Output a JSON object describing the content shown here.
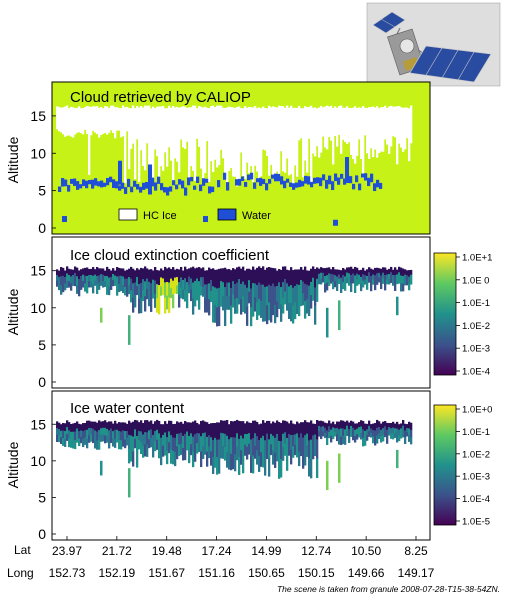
{
  "footer_text": "The scene is taken from granule 2008-07-28-T15-38-54ZN.",
  "colors": {
    "cloud_panel_background": "#c6f218",
    "hc_ice": "#ffffff",
    "water": "#1f4fd6",
    "colormap": [
      "#440154",
      "#3b528b",
      "#21918c",
      "#5ec962",
      "#fde725"
    ]
  },
  "satellite": {
    "icon": "satellite-icon"
  },
  "chart_data": [
    {
      "type": "heatmap",
      "title": "Cloud retrieved by CALIOP",
      "ylabel": "Altitude",
      "ylim": [
        0,
        19
      ],
      "yticks": [
        0,
        5,
        10,
        15
      ],
      "legend": [
        {
          "label": "HC Ice",
          "color": "#ffffff"
        },
        {
          "label": "Water",
          "color": "#1f4fd6"
        }
      ],
      "legend_position": "bottom-center"
    },
    {
      "type": "heatmap",
      "title": "Ice cloud extinction coefficient",
      "ylabel": "Altitude",
      "ylim": [
        0,
        19
      ],
      "yticks": [
        0,
        5,
        10,
        15
      ],
      "colorbar_ticks": [
        "1.0E+1",
        "1.0E 0",
        "1.0E-1",
        "1.0E-2",
        "1.0E-3",
        "1.0E-4"
      ]
    },
    {
      "type": "heatmap",
      "title": "Ice water content",
      "ylabel": "Altitude",
      "ylim": [
        0,
        19
      ],
      "yticks": [
        0,
        5,
        10,
        15
      ],
      "colorbar_ticks": [
        "1.0E+0",
        "1.0E-1",
        "1.0E-2",
        "1.0E-3",
        "1.0E-4",
        "1.0E-5"
      ]
    }
  ],
  "x_axis": {
    "lat_label": "Lat",
    "long_label": "Long",
    "lat": [
      "23.97",
      "21.72",
      "19.48",
      "17.24",
      "14.99",
      "12.74",
      "10.50",
      "8.25"
    ],
    "long": [
      "152.73",
      "152.19",
      "151.67",
      "151.16",
      "150.65",
      "150.15",
      "149.66",
      "149.17"
    ]
  }
}
